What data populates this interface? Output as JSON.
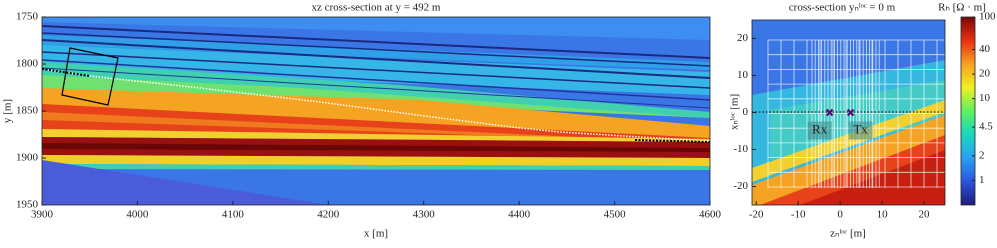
{
  "chart_data": [
    {
      "type": "heatmap",
      "title": "xz cross-section at y = 492 m",
      "xlabel": "x [m]",
      "ylabel": "y [m]",
      "xlim": [
        3900,
        4600
      ],
      "xticks": [
        3900,
        4000,
        4100,
        4200,
        4300,
        4400,
        4500,
        4600
      ],
      "ylim": [
        1750,
        1950
      ],
      "yticks": [
        1750,
        1800,
        1850,
        1900,
        1950
      ],
      "y_reversed": true
    },
    {
      "type": "heatmap",
      "title": "cross-section yₙˡᵒᶜ = 0 m",
      "xlabel": "zₙˡᵒᶜ [m]",
      "ylabel": "xₙˡᵒᶜ [m]",
      "xlim": [
        -21,
        25
      ],
      "xticks": [
        -20,
        -10,
        0,
        10,
        20
      ],
      "ylim": [
        -25,
        25
      ],
      "yticks": [
        -20,
        -10,
        0,
        10,
        20
      ],
      "y_reversed": false,
      "annotations": [
        {
          "text": "Rx",
          "x": -2.5,
          "y": 0
        },
        {
          "text": "Tx",
          "x": 2.5,
          "y": 0
        }
      ],
      "marker_color": "#5a0a6e",
      "colorbar": {
        "label": "Rₕ [Ω · m]",
        "log": true,
        "lim": [
          0.5,
          100
        ],
        "ticks": [
          1,
          2,
          4.5,
          10,
          20,
          40,
          100
        ],
        "colors": [
          "#1e1a78",
          "#2a55e0",
          "#2aa0f0",
          "#18d8c0",
          "#60f060",
          "#f0f020",
          "#f8a020",
          "#e83010",
          "#7a0808"
        ]
      }
    }
  ]
}
